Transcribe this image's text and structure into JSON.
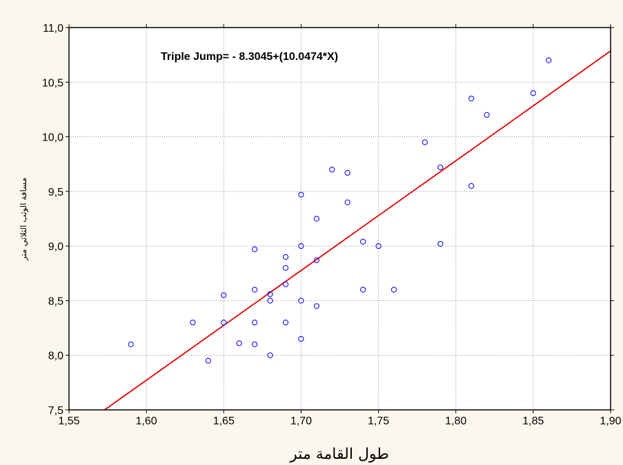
{
  "chart_data": {
    "type": "scatter",
    "title": "",
    "annotation": "Triple Jump= - 8.3045+(10.0474*X)",
    "xlabel": "طول القامة متر",
    "ylabel": "مسافة الوثب الثلاثي متر",
    "xlim": [
      1.55,
      1.9
    ],
    "ylim": [
      7.5,
      11.0
    ],
    "x_ticks": [
      1.55,
      1.6,
      1.65,
      1.7,
      1.75,
      1.8,
      1.85,
      1.9
    ],
    "y_ticks": [
      7.5,
      8.0,
      8.5,
      9.0,
      9.5,
      10.0,
      10.5,
      11.0
    ],
    "x_tick_labels": [
      "1,55",
      "1,60",
      "1,65",
      "1,70",
      "1,75",
      "1,80",
      "1,85",
      "1,90"
    ],
    "y_tick_labels": [
      "7,5",
      "8,0",
      "8,5",
      "9,0",
      "9,5",
      "10,0",
      "10,5",
      "11,0"
    ],
    "grid": true,
    "regression": {
      "intercept": -8.3045,
      "slope": 10.0474,
      "color": "#e00000"
    },
    "marker_color": "#1010ee",
    "points": [
      [
        1.59,
        8.1
      ],
      [
        1.63,
        8.3
      ],
      [
        1.64,
        7.95
      ],
      [
        1.65,
        8.55
      ],
      [
        1.65,
        8.3
      ],
      [
        1.66,
        8.11
      ],
      [
        1.67,
        8.97
      ],
      [
        1.67,
        8.6
      ],
      [
        1.67,
        8.3
      ],
      [
        1.67,
        8.1
      ],
      [
        1.68,
        8.56
      ],
      [
        1.68,
        8.5
      ],
      [
        1.68,
        8.0
      ],
      [
        1.69,
        8.9
      ],
      [
        1.69,
        8.8
      ],
      [
        1.69,
        8.65
      ],
      [
        1.69,
        8.3
      ],
      [
        1.7,
        9.47
      ],
      [
        1.7,
        9.0
      ],
      [
        1.7,
        8.5
      ],
      [
        1.7,
        8.15
      ],
      [
        1.71,
        9.25
      ],
      [
        1.71,
        8.87
      ],
      [
        1.71,
        8.45
      ],
      [
        1.72,
        9.7
      ],
      [
        1.73,
        9.67
      ],
      [
        1.73,
        9.4
      ],
      [
        1.74,
        9.04
      ],
      [
        1.74,
        8.6
      ],
      [
        1.75,
        9.0
      ],
      [
        1.76,
        8.6
      ],
      [
        1.78,
        9.95
      ],
      [
        1.79,
        9.72
      ],
      [
        1.79,
        9.02
      ],
      [
        1.81,
        10.35
      ],
      [
        1.81,
        9.55
      ],
      [
        1.82,
        10.2
      ],
      [
        1.85,
        10.4
      ],
      [
        1.86,
        10.7
      ]
    ]
  }
}
